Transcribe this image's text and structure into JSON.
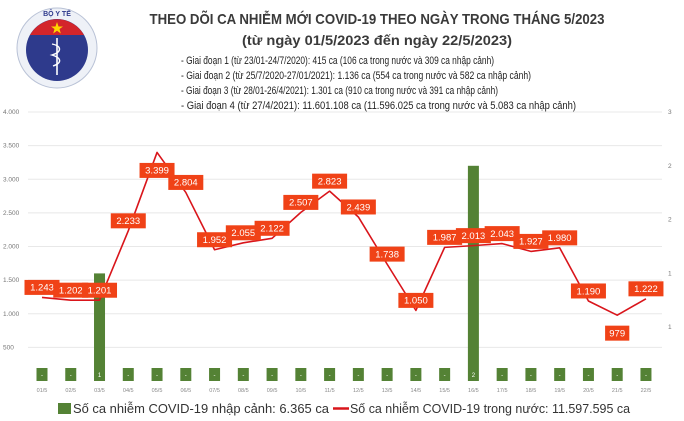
{
  "header": {
    "title": "THEO DÕI CA NHIỄM MỚI COVID-19 THEO NGÀY TRONG THÁNG 5/2023",
    "subtitle": "(từ ngày 01/5/2023 đến ngày 22/5/2023)",
    "logo_text": "BỘ Y TẾ · MINISTRY OF HEALTH",
    "phases": [
      "- Giai đoạn 1 (từ 23/01-24/7/2020): 415 ca (106 ca trong nước và 309 ca nhập cảnh)",
      "- Giai đoạn 2 (từ 25/7/2020-27/01/2021): 1.136 ca (554 ca trong nước và 582 ca nhập cảnh)",
      "- Giai đoạn 3 (từ 28/01-26/4/2021): 1.301 ca (910 ca trong nước và 391 ca nhập cảnh)",
      "- Giai đoạn 4 (từ 27/4/2021): 11.601.108 ca (11.596.025 ca trong nước và 5.083 ca nhập cảnh)"
    ]
  },
  "chart_data": {
    "type": "bar+line",
    "categories": [
      "01/5",
      "02/5",
      "03/5",
      "04/5",
      "05/5",
      "06/5",
      "07/5",
      "08/5",
      "09/5",
      "10/5",
      "11/5",
      "12/5",
      "13/5",
      "14/5",
      "15/5",
      "16/5",
      "17/5",
      "18/5",
      "19/5",
      "20/5",
      "21/5",
      "22/5"
    ],
    "series": [
      {
        "name": "Số ca nhiễm COVID-19 nhập cảnh: 6.365 ca",
        "type": "bar",
        "axis": "right",
        "color": "#548235",
        "values": [
          0,
          0,
          1,
          0,
          0,
          0,
          0,
          0,
          0,
          0,
          0,
          0,
          0,
          0,
          0,
          2,
          0,
          0,
          0,
          0,
          0,
          0
        ],
        "labels": [
          "-",
          "-",
          "1",
          "-",
          "-",
          "-",
          "-",
          "-",
          "-",
          "-",
          "-",
          "-",
          "-",
          "-",
          "-",
          "2",
          "-",
          "-",
          "-",
          "-",
          "-",
          "-"
        ]
      },
      {
        "name": "Số ca nhiễm COVID-19 trong nước: 11.597.595 ca",
        "type": "line",
        "axis": "left",
        "color": "#d9151b",
        "label_color": "#f04217",
        "values": [
          1243,
          1202,
          1201,
          2233,
          3399,
          2804,
          1952,
          2055,
          2122,
          2507,
          2823,
          2439,
          1738,
          1050,
          1987,
          2013,
          2043,
          1927,
          1980,
          1190,
          979,
          1222
        ],
        "labels": [
          "1.243",
          "1.202",
          "1.201",
          "2.233",
          "3.399",
          "2.804",
          "1.952",
          "2.055",
          "2.122",
          "2.507",
          "2.823",
          "2.439",
          "1.738",
          "1.050",
          "1.987",
          "2.013",
          "2.043",
          "1.927",
          "1.980",
          "1.190",
          "979",
          "1.222"
        ]
      }
    ],
    "left_axis": {
      "range": [
        0,
        4000
      ],
      "ticks": [
        "500",
        "1.000",
        "1.500",
        "2.000",
        "2.500",
        "3.000",
        "3.500",
        "4.000"
      ],
      "tick_values": [
        500,
        1000,
        1500,
        2000,
        2500,
        3000,
        3500,
        4000
      ]
    },
    "right_axis": {
      "range": [
        0,
        2.5
      ],
      "ticks": [
        "1",
        "1",
        "2",
        "2",
        "3"
      ],
      "tick_values": [
        0.5,
        1,
        1.5,
        2,
        2.5
      ]
    },
    "grid": true,
    "legend_placement": "bottom"
  }
}
